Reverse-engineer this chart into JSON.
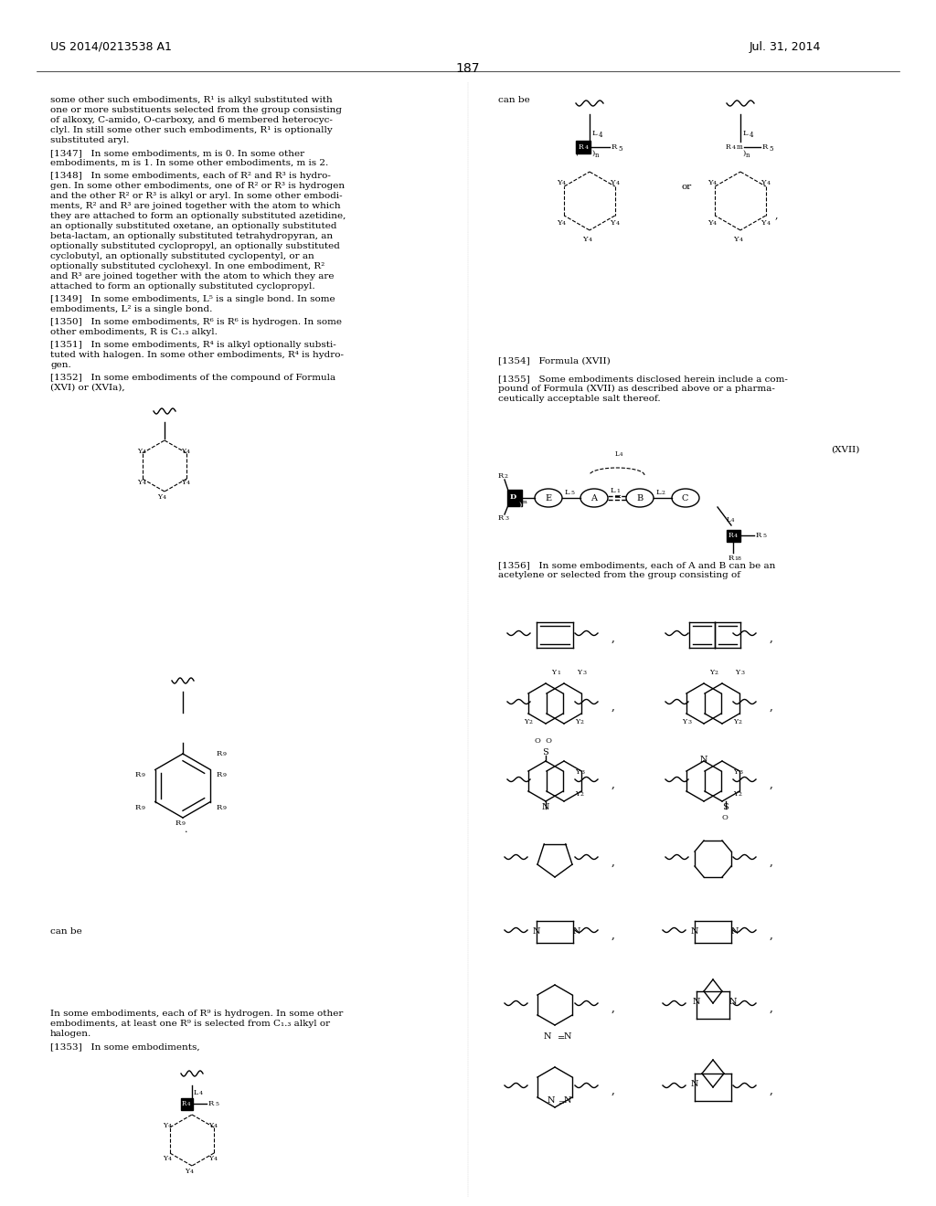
{
  "page_header_left": "US 2014/0213538 A1",
  "page_header_right": "Jul. 31, 2014",
  "page_number": "187",
  "background_color": "#ffffff",
  "text_color": "#000000",
  "figsize": [
    10.24,
    13.2
  ],
  "dpi": 100
}
